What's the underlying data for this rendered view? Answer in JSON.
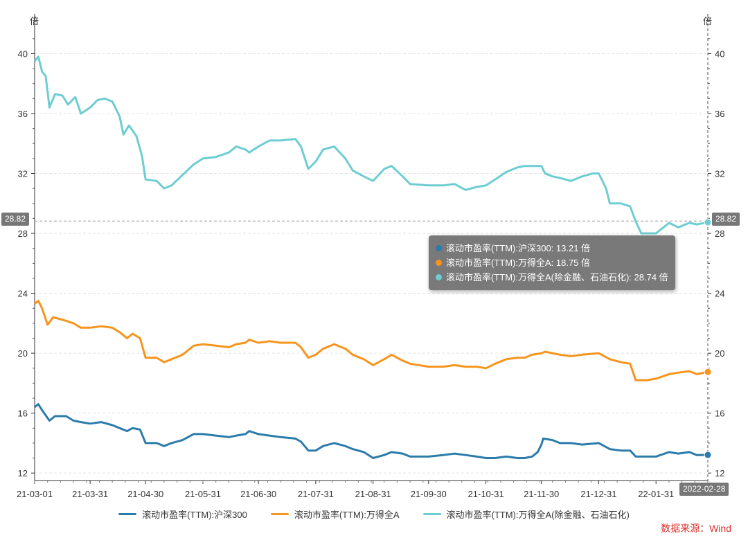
{
  "chart_data": {
    "type": "line",
    "y_unit_left": "倍",
    "y_unit_right": "倍",
    "ylim": [
      11.5,
      41.5
    ],
    "y_ticks": [
      12,
      16,
      20,
      24,
      28,
      32,
      36,
      40
    ],
    "y_tick_labels": [
      "12",
      "16",
      "20",
      "24",
      "28",
      "32",
      "36",
      "40"
    ],
    "x_range": [
      "2021-03-01",
      "2022-02-28"
    ],
    "x_ticks": [
      {
        "date": "2021-03-01",
        "label": "21-03-01"
      },
      {
        "date": "2021-03-31",
        "label": "21-03-31"
      },
      {
        "date": "2021-04-30",
        "label": "21-04-30"
      },
      {
        "date": "2021-05-31",
        "label": "21-05-31"
      },
      {
        "date": "2021-06-30",
        "label": "21-06-30"
      },
      {
        "date": "2021-07-31",
        "label": "21-07-31"
      },
      {
        "date": "2021-08-31",
        "label": "21-08-31"
      },
      {
        "date": "2021-09-30",
        "label": "21-09-30"
      },
      {
        "date": "2021-10-31",
        "label": "21-10-31"
      },
      {
        "date": "2021-11-30",
        "label": "21-11-30"
      },
      {
        "date": "2021-12-31",
        "label": "21-12-31"
      },
      {
        "date": "2022-01-31",
        "label": "22-01-31"
      }
    ],
    "x_axis_pointer_label": "2022-02-28",
    "y_axis_pointer_label": "28.82",
    "series": [
      {
        "name": "滚动市盈率(TTM):沪深300",
        "color": "#2b7bab",
        "points": [
          [
            "2021-03-01",
            16.4
          ],
          [
            "2021-03-03",
            16.6
          ],
          [
            "2021-03-05",
            16.2
          ],
          [
            "2021-03-09",
            15.5
          ],
          [
            "2021-03-12",
            15.8
          ],
          [
            "2021-03-18",
            15.8
          ],
          [
            "2021-03-22",
            15.5
          ],
          [
            "2021-03-26",
            15.4
          ],
          [
            "2021-03-31",
            15.3
          ],
          [
            "2021-04-06",
            15.4
          ],
          [
            "2021-04-12",
            15.2
          ],
          [
            "2021-04-16",
            15.0
          ],
          [
            "2021-04-20",
            14.8
          ],
          [
            "2021-04-23",
            15.0
          ],
          [
            "2021-04-27",
            14.9
          ],
          [
            "2021-04-30",
            14.0
          ],
          [
            "2021-05-06",
            14.0
          ],
          [
            "2021-05-10",
            13.8
          ],
          [
            "2021-05-14",
            14.0
          ],
          [
            "2021-05-20",
            14.2
          ],
          [
            "2021-05-26",
            14.6
          ],
          [
            "2021-05-31",
            14.6
          ],
          [
            "2021-06-07",
            14.5
          ],
          [
            "2021-06-14",
            14.4
          ],
          [
            "2021-06-18",
            14.5
          ],
          [
            "2021-06-23",
            14.6
          ],
          [
            "2021-06-25",
            14.8
          ],
          [
            "2021-06-30",
            14.6
          ],
          [
            "2021-07-06",
            14.5
          ],
          [
            "2021-07-12",
            14.4
          ],
          [
            "2021-07-20",
            14.3
          ],
          [
            "2021-07-23",
            14.1
          ],
          [
            "2021-07-27",
            13.5
          ],
          [
            "2021-07-31",
            13.5
          ],
          [
            "2021-08-04",
            13.8
          ],
          [
            "2021-08-10",
            14.0
          ],
          [
            "2021-08-16",
            13.8
          ],
          [
            "2021-08-20",
            13.6
          ],
          [
            "2021-08-26",
            13.4
          ],
          [
            "2021-08-31",
            13.0
          ],
          [
            "2021-09-06",
            13.2
          ],
          [
            "2021-09-10",
            13.4
          ],
          [
            "2021-09-16",
            13.3
          ],
          [
            "2021-09-20",
            13.1
          ],
          [
            "2021-09-30",
            13.1
          ],
          [
            "2021-10-08",
            13.2
          ],
          [
            "2021-10-14",
            13.3
          ],
          [
            "2021-10-20",
            13.2
          ],
          [
            "2021-10-26",
            13.1
          ],
          [
            "2021-10-31",
            13.0
          ],
          [
            "2021-11-05",
            13.0
          ],
          [
            "2021-11-11",
            13.1
          ],
          [
            "2021-11-17",
            13.0
          ],
          [
            "2021-11-21",
            13.0
          ],
          [
            "2021-11-25",
            13.1
          ],
          [
            "2021-11-28",
            13.4
          ],
          [
            "2021-11-30",
            13.9
          ],
          [
            "2021-12-01",
            14.3
          ],
          [
            "2021-12-06",
            14.2
          ],
          [
            "2021-12-10",
            14.0
          ],
          [
            "2021-12-16",
            14.0
          ],
          [
            "2021-12-22",
            13.9
          ],
          [
            "2021-12-31",
            14.0
          ],
          [
            "2022-01-06",
            13.6
          ],
          [
            "2022-01-12",
            13.5
          ],
          [
            "2022-01-17",
            13.5
          ],
          [
            "2022-01-20",
            13.1
          ],
          [
            "2022-01-26",
            13.1
          ],
          [
            "2022-01-31",
            13.1
          ],
          [
            "2022-02-07",
            13.4
          ],
          [
            "2022-02-12",
            13.3
          ],
          [
            "2022-02-18",
            13.4
          ],
          [
            "2022-02-22",
            13.2
          ],
          [
            "2022-02-28",
            13.21
          ]
        ]
      },
      {
        "name": "滚动市盈率(TTM):万得全A",
        "color": "#f7941d",
        "points": [
          [
            "2021-03-01",
            23.3
          ],
          [
            "2021-03-03",
            23.5
          ],
          [
            "2021-03-05",
            23.0
          ],
          [
            "2021-03-08",
            21.9
          ],
          [
            "2021-03-11",
            22.4
          ],
          [
            "2021-03-17",
            22.2
          ],
          [
            "2021-03-22",
            22.0
          ],
          [
            "2021-03-26",
            21.7
          ],
          [
            "2021-03-31",
            21.7
          ],
          [
            "2021-04-06",
            21.8
          ],
          [
            "2021-04-12",
            21.7
          ],
          [
            "2021-04-16",
            21.4
          ],
          [
            "2021-04-20",
            21.0
          ],
          [
            "2021-04-23",
            21.3
          ],
          [
            "2021-04-27",
            21.0
          ],
          [
            "2021-04-30",
            19.7
          ],
          [
            "2021-05-06",
            19.7
          ],
          [
            "2021-05-10",
            19.4
          ],
          [
            "2021-05-14",
            19.6
          ],
          [
            "2021-05-20",
            19.9
          ],
          [
            "2021-05-26",
            20.5
          ],
          [
            "2021-05-31",
            20.6
          ],
          [
            "2021-06-07",
            20.5
          ],
          [
            "2021-06-14",
            20.4
          ],
          [
            "2021-06-18",
            20.6
          ],
          [
            "2021-06-23",
            20.7
          ],
          [
            "2021-06-25",
            20.9
          ],
          [
            "2021-06-30",
            20.7
          ],
          [
            "2021-07-06",
            20.8
          ],
          [
            "2021-07-12",
            20.7
          ],
          [
            "2021-07-20",
            20.7
          ],
          [
            "2021-07-23",
            20.4
          ],
          [
            "2021-07-27",
            19.7
          ],
          [
            "2021-07-31",
            19.9
          ],
          [
            "2021-08-04",
            20.3
          ],
          [
            "2021-08-10",
            20.6
          ],
          [
            "2021-08-16",
            20.3
          ],
          [
            "2021-08-20",
            19.9
          ],
          [
            "2021-08-26",
            19.6
          ],
          [
            "2021-08-31",
            19.2
          ],
          [
            "2021-09-06",
            19.6
          ],
          [
            "2021-09-10",
            19.9
          ],
          [
            "2021-09-16",
            19.5
          ],
          [
            "2021-09-20",
            19.3
          ],
          [
            "2021-09-30",
            19.1
          ],
          [
            "2021-10-08",
            19.1
          ],
          [
            "2021-10-14",
            19.2
          ],
          [
            "2021-10-20",
            19.1
          ],
          [
            "2021-10-26",
            19.1
          ],
          [
            "2021-10-31",
            19.0
          ],
          [
            "2021-11-05",
            19.3
          ],
          [
            "2021-11-11",
            19.6
          ],
          [
            "2021-11-17",
            19.7
          ],
          [
            "2021-11-21",
            19.7
          ],
          [
            "2021-11-25",
            19.9
          ],
          [
            "2021-11-30",
            20.0
          ],
          [
            "2021-12-02",
            20.1
          ],
          [
            "2021-12-06",
            20.0
          ],
          [
            "2021-12-10",
            19.9
          ],
          [
            "2021-12-16",
            19.8
          ],
          [
            "2021-12-22",
            19.9
          ],
          [
            "2021-12-31",
            20.0
          ],
          [
            "2022-01-06",
            19.6
          ],
          [
            "2022-01-12",
            19.4
          ],
          [
            "2022-01-17",
            19.3
          ],
          [
            "2022-01-20",
            18.2
          ],
          [
            "2022-01-26",
            18.2
          ],
          [
            "2022-01-31",
            18.3
          ],
          [
            "2022-02-07",
            18.6
          ],
          [
            "2022-02-12",
            18.7
          ],
          [
            "2022-02-18",
            18.8
          ],
          [
            "2022-02-22",
            18.6
          ],
          [
            "2022-02-28",
            18.75
          ]
        ]
      },
      {
        "name": "滚动市盈率(TTM):万得全A(除金融、石油石化)",
        "color": "#6dcdd2",
        "points": [
          [
            "2021-03-01",
            39.5
          ],
          [
            "2021-03-03",
            39.8
          ],
          [
            "2021-03-05",
            38.8
          ],
          [
            "2021-03-07",
            38.5
          ],
          [
            "2021-03-09",
            36.4
          ],
          [
            "2021-03-12",
            37.3
          ],
          [
            "2021-03-16",
            37.2
          ],
          [
            "2021-03-19",
            36.6
          ],
          [
            "2021-03-23",
            37.1
          ],
          [
            "2021-03-26",
            36.0
          ],
          [
            "2021-03-31",
            36.4
          ],
          [
            "2021-04-04",
            36.9
          ],
          [
            "2021-04-08",
            37.0
          ],
          [
            "2021-04-12",
            36.8
          ],
          [
            "2021-04-16",
            35.8
          ],
          [
            "2021-04-18",
            34.6
          ],
          [
            "2021-04-21",
            35.2
          ],
          [
            "2021-04-25",
            34.5
          ],
          [
            "2021-04-28",
            33.2
          ],
          [
            "2021-04-30",
            31.6
          ],
          [
            "2021-05-06",
            31.5
          ],
          [
            "2021-05-10",
            31.0
          ],
          [
            "2021-05-14",
            31.2
          ],
          [
            "2021-05-20",
            31.9
          ],
          [
            "2021-05-26",
            32.6
          ],
          [
            "2021-05-31",
            33.0
          ],
          [
            "2021-06-07",
            33.1
          ],
          [
            "2021-06-14",
            33.4
          ],
          [
            "2021-06-18",
            33.8
          ],
          [
            "2021-06-23",
            33.6
          ],
          [
            "2021-06-25",
            33.4
          ],
          [
            "2021-06-30",
            33.8
          ],
          [
            "2021-07-06",
            34.2
          ],
          [
            "2021-07-12",
            34.2
          ],
          [
            "2021-07-20",
            34.3
          ],
          [
            "2021-07-23",
            33.8
          ],
          [
            "2021-07-27",
            32.3
          ],
          [
            "2021-07-31",
            32.8
          ],
          [
            "2021-08-04",
            33.6
          ],
          [
            "2021-08-10",
            33.8
          ],
          [
            "2021-08-16",
            33.0
          ],
          [
            "2021-08-20",
            32.2
          ],
          [
            "2021-08-26",
            31.8
          ],
          [
            "2021-08-31",
            31.5
          ],
          [
            "2021-09-06",
            32.3
          ],
          [
            "2021-09-10",
            32.5
          ],
          [
            "2021-09-16",
            31.8
          ],
          [
            "2021-09-20",
            31.3
          ],
          [
            "2021-09-30",
            31.2
          ],
          [
            "2021-10-08",
            31.2
          ],
          [
            "2021-10-14",
            31.3
          ],
          [
            "2021-10-20",
            30.9
          ],
          [
            "2021-10-26",
            31.1
          ],
          [
            "2021-10-31",
            31.2
          ],
          [
            "2021-11-05",
            31.6
          ],
          [
            "2021-11-11",
            32.1
          ],
          [
            "2021-11-17",
            32.4
          ],
          [
            "2021-11-21",
            32.5
          ],
          [
            "2021-11-25",
            32.5
          ],
          [
            "2021-11-30",
            32.5
          ],
          [
            "2021-12-02",
            32.0
          ],
          [
            "2021-12-06",
            31.8
          ],
          [
            "2021-12-10",
            31.7
          ],
          [
            "2021-12-16",
            31.5
          ],
          [
            "2021-12-22",
            31.8
          ],
          [
            "2021-12-28",
            32.0
          ],
          [
            "2021-12-31",
            32.0
          ],
          [
            "2022-01-04",
            31.0
          ],
          [
            "2022-01-06",
            30.0
          ],
          [
            "2022-01-12",
            30.0
          ],
          [
            "2022-01-17",
            29.8
          ],
          [
            "2022-01-20",
            28.8
          ],
          [
            "2022-01-23",
            28.0
          ],
          [
            "2022-01-31",
            28.0
          ],
          [
            "2022-02-04",
            28.4
          ],
          [
            "2022-02-07",
            28.7
          ],
          [
            "2022-02-12",
            28.4
          ],
          [
            "2022-02-18",
            28.7
          ],
          [
            "2022-02-22",
            28.6
          ],
          [
            "2022-02-28",
            28.74
          ]
        ]
      }
    ],
    "tooltip": [
      {
        "label": "滚动市盈率(TTM):沪深300: 13.21 倍",
        "color": "#2b7bab"
      },
      {
        "label": "滚动市盈率(TTM):万得全A: 18.75 倍",
        "color": "#f7941d"
      },
      {
        "label": "滚动市盈率(TTM):万得全A(除金融、石油石化): 28.74 倍",
        "color": "#6dcdd2"
      }
    ],
    "legend_position": "bottom",
    "source": "数据来源：Wind"
  }
}
